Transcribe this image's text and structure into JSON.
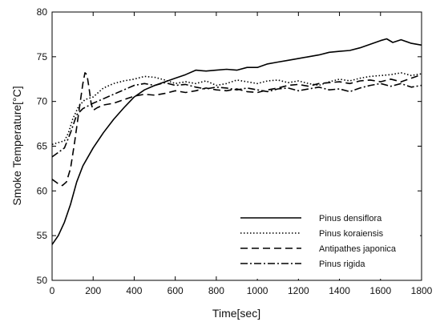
{
  "chart_data": {
    "type": "line",
    "title": "",
    "xlabel": "Time[sec]",
    "ylabel": "Smoke Temperature[°C]",
    "xlim": [
      0,
      1800
    ],
    "ylim": [
      50,
      80
    ],
    "x_ticks": [
      0,
      200,
      400,
      600,
      800,
      1000,
      1200,
      1400,
      1600,
      1800
    ],
    "y_ticks": [
      50,
      55,
      60,
      65,
      70,
      75,
      80
    ],
    "grid": false,
    "legend_position": "lower-right",
    "series": [
      {
        "name": "Pinus densiflora",
        "line_style": "solid",
        "x": [
          0,
          30,
          60,
          90,
          120,
          150,
          200,
          250,
          300,
          350,
          400,
          450,
          500,
          550,
          600,
          650,
          700,
          750,
          800,
          850,
          900,
          950,
          1000,
          1050,
          1100,
          1150,
          1200,
          1250,
          1300,
          1350,
          1400,
          1450,
          1500,
          1550,
          1600,
          1630,
          1660,
          1700,
          1750,
          1800
        ],
        "y": [
          54.0,
          55.0,
          56.5,
          58.5,
          61.0,
          62.8,
          64.8,
          66.5,
          68.0,
          69.3,
          70.5,
          71.3,
          71.8,
          72.2,
          72.6,
          73.0,
          73.5,
          73.4,
          73.5,
          73.6,
          73.5,
          73.8,
          73.8,
          74.2,
          74.4,
          74.6,
          74.8,
          75.0,
          75.2,
          75.5,
          75.6,
          75.7,
          76.0,
          76.4,
          76.8,
          77.0,
          76.6,
          76.9,
          76.5,
          76.3
        ]
      },
      {
        "name": "Pinus koraiensis",
        "line_style": "dotted",
        "x": [
          0,
          30,
          60,
          80,
          100,
          130,
          160,
          200,
          250,
          300,
          350,
          400,
          450,
          500,
          550,
          600,
          650,
          700,
          750,
          800,
          850,
          900,
          950,
          1000,
          1050,
          1100,
          1150,
          1200,
          1250,
          1300,
          1350,
          1400,
          1450,
          1500,
          1550,
          1600,
          1650,
          1700,
          1750,
          1800
        ],
        "y": [
          65.2,
          65.4,
          65.6,
          66.5,
          68.0,
          69.5,
          70.2,
          70.5,
          71.5,
          72.0,
          72.3,
          72.5,
          72.8,
          72.7,
          72.4,
          72.0,
          72.2,
          72.0,
          72.3,
          71.8,
          72.0,
          72.4,
          72.2,
          72.0,
          72.3,
          72.4,
          72.1,
          72.3,
          72.0,
          71.8,
          72.2,
          72.5,
          72.3,
          72.6,
          72.8,
          72.9,
          73.0,
          73.2,
          72.9,
          73.1
        ]
      },
      {
        "name": "Antipathes japonica",
        "line_style": "dashed",
        "x": [
          0,
          30,
          50,
          70,
          90,
          110,
          130,
          150,
          160,
          170,
          180,
          190,
          200,
          220,
          250,
          300,
          350,
          400,
          450,
          500,
          550,
          600,
          650,
          700,
          750,
          800,
          850,
          900,
          950,
          1000,
          1050,
          1100,
          1150,
          1200,
          1250,
          1300,
          1350,
          1400,
          1450,
          1500,
          1550,
          1600,
          1650,
          1700,
          1750,
          1800
        ],
        "y": [
          61.3,
          60.8,
          60.6,
          61.0,
          62.5,
          65.5,
          68.8,
          72.0,
          73.2,
          73.0,
          71.5,
          69.8,
          69.0,
          69.3,
          69.6,
          69.8,
          70.2,
          70.6,
          70.8,
          70.7,
          70.9,
          71.2,
          71.0,
          71.2,
          71.5,
          71.3,
          71.2,
          71.4,
          71.1,
          71.0,
          71.3,
          71.5,
          71.8,
          71.9,
          71.7,
          72.0,
          72.1,
          72.2,
          72.0,
          72.3,
          72.4,
          72.2,
          72.5,
          72.2,
          72.6,
          73.0
        ]
      },
      {
        "name": "Pinus rigida",
        "line_style": "dash-dot",
        "x": [
          0,
          30,
          60,
          90,
          120,
          150,
          200,
          250,
          300,
          350,
          400,
          450,
          500,
          550,
          600,
          650,
          700,
          750,
          800,
          850,
          900,
          950,
          1000,
          1050,
          1100,
          1150,
          1200,
          1250,
          1300,
          1350,
          1400,
          1450,
          1500,
          1550,
          1600,
          1650,
          1700,
          1750,
          1800
        ],
        "y": [
          63.8,
          64.3,
          64.8,
          66.5,
          68.5,
          69.2,
          69.8,
          70.3,
          70.8,
          71.3,
          71.8,
          72.0,
          71.8,
          72.1,
          71.8,
          71.9,
          71.6,
          71.4,
          71.6,
          71.5,
          71.3,
          71.5,
          71.3,
          71.1,
          71.4,
          71.5,
          71.2,
          71.4,
          71.6,
          71.3,
          71.4,
          71.1,
          71.5,
          71.8,
          72.0,
          71.7,
          72.0,
          71.6,
          71.8
        ]
      }
    ]
  }
}
